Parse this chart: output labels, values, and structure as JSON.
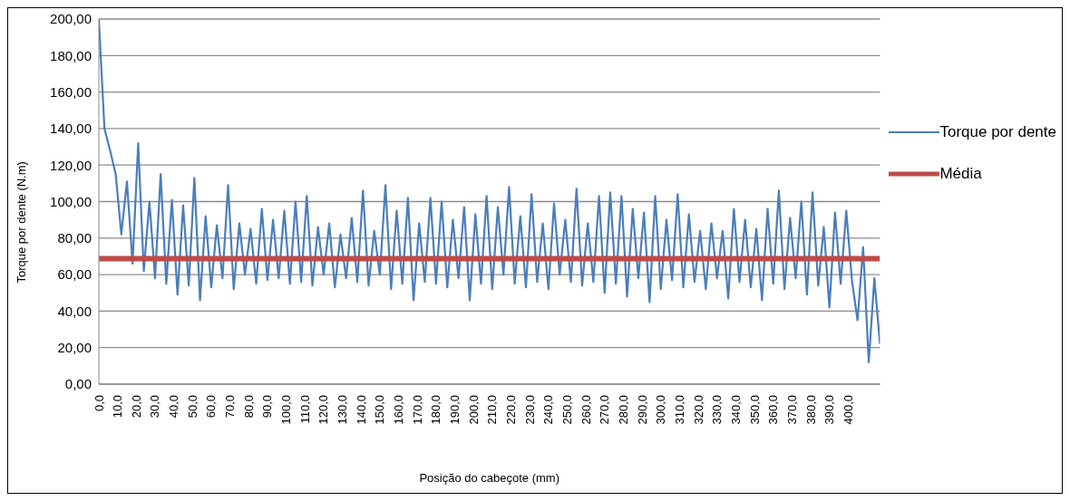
{
  "chart_data": {
    "type": "line",
    "xlabel": "Posição do cabeçote (mm)",
    "ylabel": "Torque por dente (N.m)",
    "xlim": [
      0,
      417
    ],
    "xticks": [
      {
        "value": 0,
        "label": "0,0"
      },
      {
        "value": 10,
        "label": "10,0"
      },
      {
        "value": 20,
        "label": "20,0"
      },
      {
        "value": 30,
        "label": "30,0"
      },
      {
        "value": 40,
        "label": "40,0"
      },
      {
        "value": 50,
        "label": "50,0"
      },
      {
        "value": 60,
        "label": "60,0"
      },
      {
        "value": 70,
        "label": "70,0"
      },
      {
        "value": 80,
        "label": "80,0"
      },
      {
        "value": 90,
        "label": "90,0"
      },
      {
        "value": 100,
        "label": "100,0"
      },
      {
        "value": 110,
        "label": "110,0"
      },
      {
        "value": 120,
        "label": "120,0"
      },
      {
        "value": 130,
        "label": "130,0"
      },
      {
        "value": 140,
        "label": "140,0"
      },
      {
        "value": 150,
        "label": "150,0"
      },
      {
        "value": 160,
        "label": "160,0"
      },
      {
        "value": 170,
        "label": "170,0"
      },
      {
        "value": 180,
        "label": "180,0"
      },
      {
        "value": 190,
        "label": "190,0"
      },
      {
        "value": 200,
        "label": "200,0"
      },
      {
        "value": 210,
        "label": "210,0"
      },
      {
        "value": 220,
        "label": "220,0"
      },
      {
        "value": 230,
        "label": "230,0"
      },
      {
        "value": 240,
        "label": "240,0"
      },
      {
        "value": 250,
        "label": "250,0"
      },
      {
        "value": 260,
        "label": "260,0"
      },
      {
        "value": 270,
        "label": "270,0"
      },
      {
        "value": 280,
        "label": "280,0"
      },
      {
        "value": 290,
        "label": "290,0"
      },
      {
        "value": 300,
        "label": "300,0"
      },
      {
        "value": 310,
        "label": "310,0"
      },
      {
        "value": 320,
        "label": "320,0"
      },
      {
        "value": 330,
        "label": "330,0"
      },
      {
        "value": 340,
        "label": "340,0"
      },
      {
        "value": 350,
        "label": "350,0"
      },
      {
        "value": 360,
        "label": "360,0"
      },
      {
        "value": 370,
        "label": "370,0"
      },
      {
        "value": 380,
        "label": "380,0"
      },
      {
        "value": 390,
        "label": "390,0"
      },
      {
        "value": 400,
        "label": "400,0"
      }
    ],
    "ylim": [
      0,
      200
    ],
    "yticks": [
      {
        "value": 0,
        "label": "0,00"
      },
      {
        "value": 20,
        "label": "20,00"
      },
      {
        "value": 40,
        "label": "40,00"
      },
      {
        "value": 60,
        "label": "60,00"
      },
      {
        "value": 80,
        "label": "80,00"
      },
      {
        "value": 100,
        "label": "100,00"
      },
      {
        "value": 120,
        "label": "120,00"
      },
      {
        "value": 140,
        "label": "140,00"
      },
      {
        "value": 160,
        "label": "160,00"
      },
      {
        "value": 180,
        "label": "180,00"
      },
      {
        "value": 200,
        "label": "200,00"
      }
    ],
    "grid": "y",
    "legend": "top right",
    "marker": "none",
    "line_style": "solid",
    "series": [
      {
        "name": "Torque por dente",
        "color": "#4a7ebb",
        "x": [
          0,
          3,
          6,
          9,
          12,
          15,
          18,
          21,
          24,
          27,
          30,
          33,
          36,
          39,
          42,
          45,
          48,
          51,
          54,
          57,
          60,
          63,
          66,
          69,
          72,
          75,
          78,
          81,
          84,
          87,
          90,
          93,
          96,
          99,
          102,
          105,
          108,
          111,
          114,
          117,
          120,
          123,
          126,
          129,
          132,
          135,
          138,
          141,
          144,
          147,
          150,
          153,
          156,
          159,
          162,
          165,
          168,
          171,
          174,
          177,
          180,
          183,
          186,
          189,
          192,
          195,
          198,
          201,
          204,
          207,
          210,
          213,
          216,
          219,
          222,
          225,
          228,
          231,
          234,
          237,
          240,
          243,
          246,
          249,
          252,
          255,
          258,
          261,
          264,
          267,
          270,
          273,
          276,
          279,
          282,
          285,
          288,
          291,
          294,
          297,
          300,
          303,
          306,
          309,
          312,
          315,
          318,
          321,
          324,
          327,
          330,
          333,
          336,
          339,
          342,
          345,
          348,
          351,
          354,
          357,
          360,
          363,
          366,
          369,
          372,
          375,
          378,
          381,
          384,
          387,
          390,
          393,
          396,
          399,
          402,
          405,
          408,
          411,
          414,
          417
        ],
        "values": [
          200,
          140,
          128,
          115,
          82,
          111,
          66,
          132,
          62,
          100,
          58,
          115,
          55,
          101,
          49,
          98,
          54,
          113,
          46,
          92,
          53,
          87,
          58,
          109,
          52,
          88,
          60,
          85,
          55,
          96,
          57,
          90,
          58,
          95,
          55,
          100,
          56,
          103,
          54,
          86,
          60,
          88,
          53,
          82,
          58,
          91,
          56,
          106,
          54,
          84,
          60,
          109,
          52,
          95,
          55,
          102,
          46,
          88,
          56,
          102,
          55,
          100,
          53,
          90,
          58,
          97,
          46,
          93,
          55,
          103,
          52,
          97,
          60,
          108,
          55,
          92,
          53,
          104,
          56,
          88,
          52,
          99,
          60,
          90,
          56,
          107,
          54,
          88,
          56,
          103,
          50,
          105,
          55,
          103,
          48,
          96,
          58,
          94,
          45,
          103,
          52,
          90,
          57,
          104,
          53,
          93,
          56,
          84,
          52,
          88,
          58,
          84,
          47,
          96,
          56,
          90,
          53,
          85,
          46,
          96,
          55,
          106,
          52,
          91,
          58,
          100,
          49,
          105,
          54,
          86,
          42,
          94,
          55,
          95,
          57,
          35,
          75,
          12,
          58,
          22
        ]
      },
      {
        "name": "Média",
        "color": "#be4b48",
        "x": [
          0,
          417
        ],
        "values": [
          68.7,
          68.7
        ]
      }
    ]
  }
}
